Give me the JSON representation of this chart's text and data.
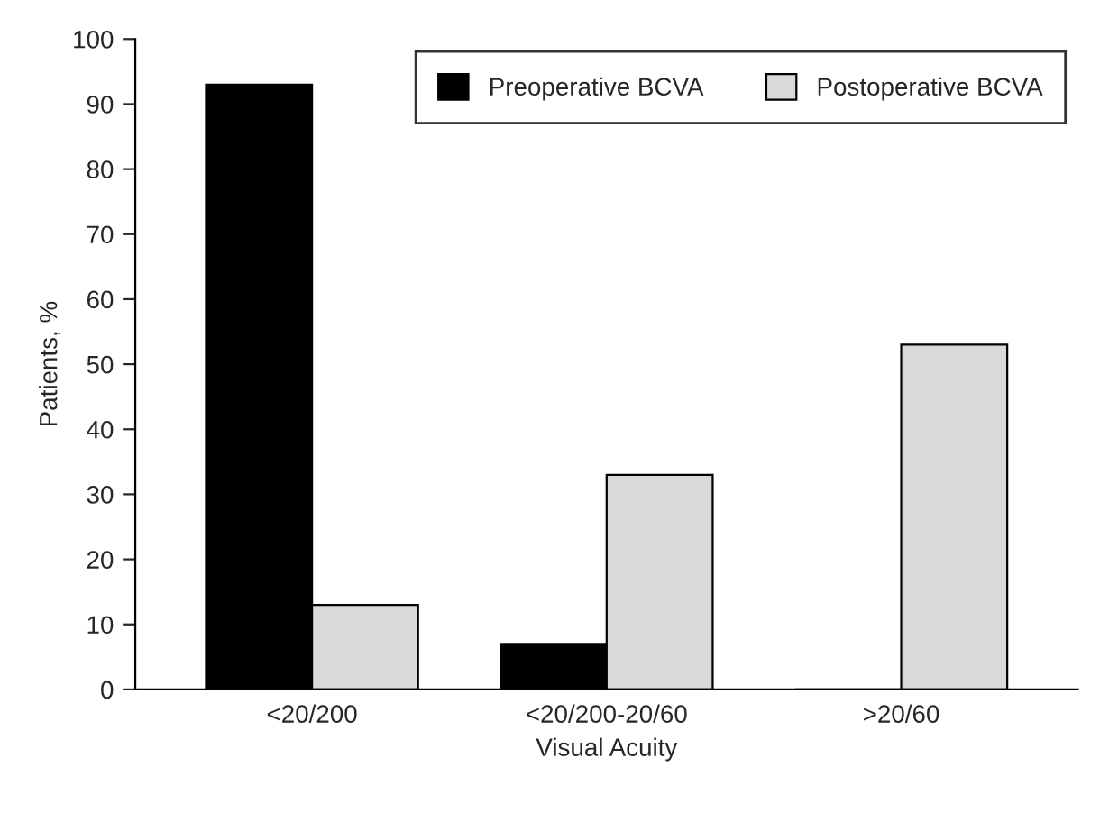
{
  "chart_data": {
    "type": "bar",
    "xlabel": "Visual Acuity",
    "ylabel": "Patients, %",
    "categories": [
      "<20/200",
      "<20/200-20/60",
      ">20/60"
    ],
    "series": [
      {
        "name": "Preoperative BCVA",
        "color": "#000000",
        "values": [
          93,
          7,
          0
        ]
      },
      {
        "name": "Postoperative BCVA",
        "color": "#d9d9d9",
        "values": [
          13,
          33,
          53
        ]
      }
    ],
    "ylim": [
      0,
      100
    ],
    "yticks": [
      0,
      10,
      20,
      30,
      40,
      50,
      60,
      70,
      80,
      90,
      100
    ],
    "grid": false,
    "legend": "top right"
  }
}
